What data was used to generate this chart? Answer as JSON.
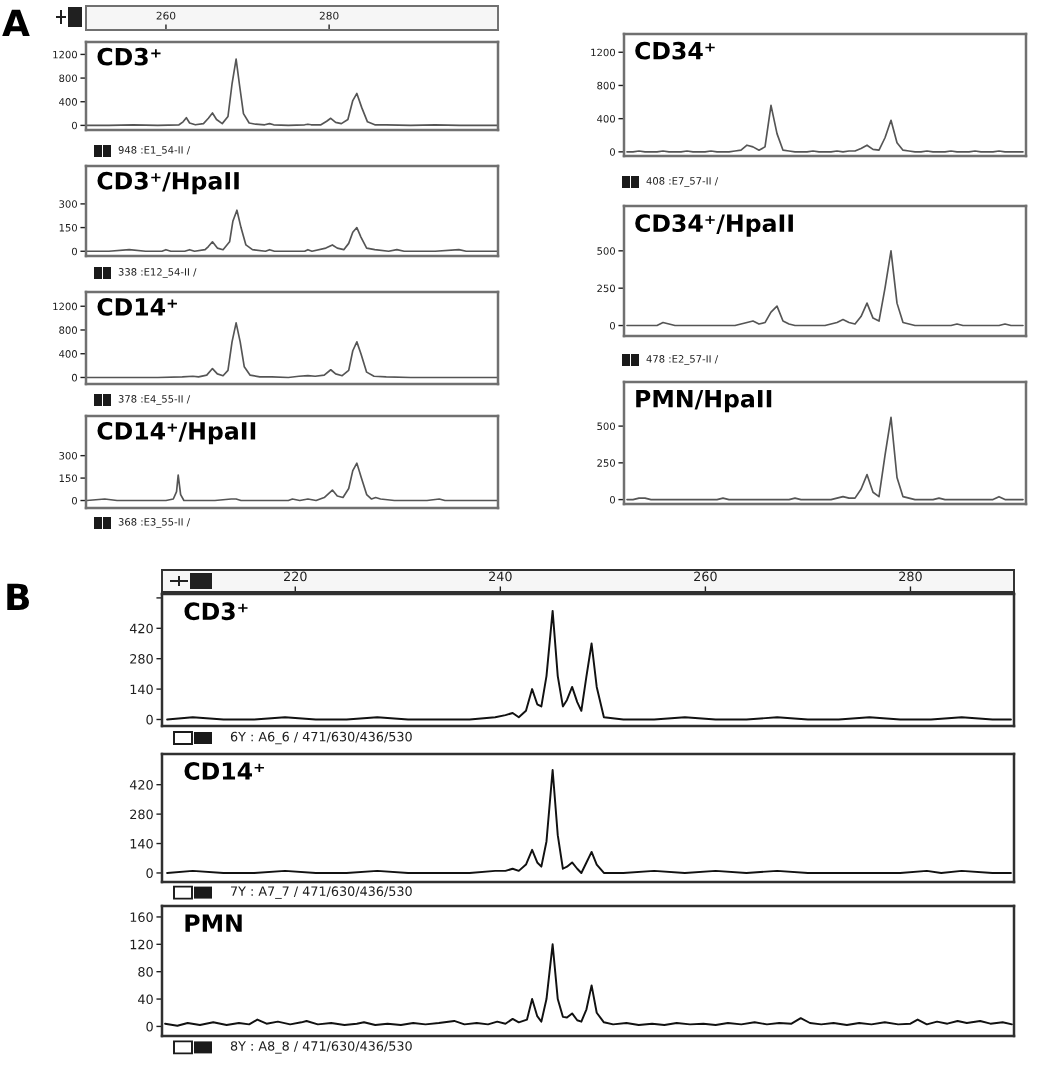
{
  "chart_data": [
    {
      "type": "line",
      "title": "CD3⁺",
      "color": "#555555",
      "xlim": [
        250.2,
        300.7
      ],
      "xticks": [
        260,
        280
      ],
      "ylim": [
        -78,
        1410
      ],
      "yticks": [
        0,
        400,
        800,
        1200
      ],
      "annotations": [
        "A",
        "948 :E1_54-II /"
      ],
      "x": [
        250.3,
        253,
        256,
        259,
        261.6,
        262.1,
        262.5,
        262.9,
        263.6,
        264.6,
        265.2,
        265.7,
        266.2,
        266.9,
        267.6,
        268.1,
        268.6,
        269.0,
        269.5,
        270.2,
        271,
        272.1,
        272.7,
        273.2,
        275,
        277.0,
        277.4,
        277.8,
        279.0,
        279.7,
        280.2,
        280.8,
        281.5,
        282.3,
        282.9,
        283.4,
        284.0,
        284.7,
        285.6,
        287,
        290,
        293,
        296,
        298,
        300.6
      ],
      "values": [
        0,
        0,
        10,
        0,
        10,
        60,
        130,
        40,
        10,
        30,
        120,
        210,
        100,
        30,
        150,
        700,
        1120,
        700,
        200,
        40,
        20,
        10,
        30,
        10,
        0,
        10,
        20,
        10,
        10,
        70,
        120,
        50,
        30,
        100,
        420,
        540,
        300,
        60,
        10,
        10,
        0,
        10,
        0,
        0,
        0
      ]
    },
    {
      "type": "line",
      "title": "CD3⁺/HpaII",
      "color": "#555555",
      "xlim": [
        250.2,
        300.7
      ],
      "ylim": [
        -30,
        540
      ],
      "yticks": [
        0,
        150,
        300
      ],
      "tick_labels": "y",
      "annotations": [
        "338 :E12_54-II /"
      ],
      "x": [
        250.3,
        253,
        255.5,
        257.5,
        259.5,
        260.0,
        260.6,
        262.3,
        262.9,
        263.5,
        264.8,
        265.2,
        265.7,
        266.3,
        267.0,
        267.8,
        268.2,
        268.7,
        269.2,
        269.8,
        270.6,
        272.2,
        272.7,
        273.3,
        275,
        277.0,
        277.4,
        277.9,
        279.6,
        280.4,
        281.0,
        281.8,
        282.4,
        282.9,
        283.4,
        283.9,
        284.6,
        285.6,
        287.3,
        288.3,
        289.2,
        291,
        293,
        295.9,
        296.8,
        299,
        300.6
      ],
      "values": [
        0,
        0,
        10,
        0,
        0,
        10,
        0,
        0,
        10,
        0,
        10,
        30,
        60,
        20,
        10,
        60,
        190,
        260,
        150,
        40,
        10,
        0,
        10,
        0,
        0,
        0,
        10,
        0,
        20,
        40,
        20,
        10,
        50,
        120,
        150,
        90,
        20,
        10,
        0,
        10,
        0,
        0,
        0,
        10,
        0,
        0,
        0
      ]
    },
    {
      "type": "line",
      "title": "CD14⁺",
      "color": "#555555",
      "xlim": [
        250.2,
        300.7
      ],
      "ylim": [
        -110,
        1440
      ],
      "yticks": [
        0,
        400,
        800,
        1200
      ],
      "tick_labels": "y",
      "annotations": [
        "378 :E4_55-II /"
      ],
      "x": [
        250.3,
        253,
        256,
        259,
        262,
        263.3,
        264,
        265.0,
        265.7,
        266.3,
        267.0,
        267.6,
        268.1,
        268.6,
        269.1,
        269.6,
        270.3,
        271.5,
        273,
        275,
        276.3,
        277.4,
        278.3,
        279.4,
        280.2,
        280.8,
        281.6,
        282.4,
        282.9,
        283.4,
        283.9,
        284.6,
        285.5,
        287,
        290,
        293,
        296,
        298,
        300.6
      ],
      "values": [
        0,
        0,
        0,
        0,
        10,
        20,
        10,
        40,
        150,
        60,
        30,
        120,
        600,
        920,
        600,
        180,
        40,
        10,
        10,
        0,
        20,
        30,
        20,
        40,
        130,
        60,
        30,
        120,
        450,
        600,
        400,
        90,
        20,
        10,
        0,
        0,
        0,
        0,
        0
      ]
    },
    {
      "type": "line",
      "title": "CD14⁺/HpaII",
      "color": "#555555",
      "xlim": [
        250.2,
        300.7
      ],
      "ylim": [
        -50,
        565
      ],
      "yticks": [
        0,
        150,
        300
      ],
      "tick_labels": "y",
      "annotations": [
        "368 :E3_55-II /"
      ],
      "x": [
        250.3,
        252.5,
        254,
        256,
        258,
        260,
        260.9,
        261.3,
        261.5,
        261.8,
        262.2,
        264,
        266,
        268.0,
        268.6,
        269.2,
        271,
        273,
        275.0,
        275.5,
        276.4,
        277.4,
        278.4,
        279.4,
        280.0,
        280.4,
        281.0,
        281.7,
        282.4,
        282.9,
        283.4,
        283.9,
        284.6,
        285.2,
        285.7,
        286.3,
        288,
        290,
        292,
        293.5,
        294.2,
        296,
        298,
        300.6
      ],
      "values": [
        0,
        10,
        0,
        0,
        0,
        0,
        10,
        60,
        170,
        40,
        0,
        0,
        0,
        10,
        10,
        0,
        0,
        0,
        0,
        10,
        0,
        10,
        0,
        20,
        50,
        70,
        30,
        20,
        80,
        200,
        250,
        160,
        40,
        10,
        20,
        10,
        0,
        0,
        0,
        10,
        0,
        0,
        0,
        0
      ]
    },
    {
      "type": "line",
      "title": "CD34⁺",
      "color": "#555555",
      "ylim": [
        -50,
        1420
      ],
      "yticks": [
        0,
        400,
        800,
        1200
      ],
      "tick_labels": "y",
      "annotations": [
        "408 :E7_57-II /"
      ],
      "categories": [
        null,
        null,
        null,
        null,
        null,
        null,
        null,
        null,
        null,
        null,
        null,
        null,
        null,
        null,
        null,
        null,
        null,
        null,
        null,
        null,
        null,
        null,
        null,
        null,
        null,
        null,
        null,
        null,
        null,
        null,
        null,
        null,
        null,
        null,
        null,
        null,
        null,
        null,
        null,
        null,
        null,
        null,
        null,
        null,
        null,
        null,
        null,
        null,
        null,
        null,
        null,
        null,
        null,
        null,
        null,
        null,
        null,
        null,
        null,
        null,
        null,
        null,
        null,
        null,
        null,
        null,
        null
      ],
      "values": [
        0,
        0,
        10,
        0,
        0,
        0,
        10,
        0,
        0,
        0,
        10,
        0,
        0,
        0,
        10,
        0,
        0,
        0,
        10,
        20,
        80,
        60,
        20,
        60,
        560,
        220,
        20,
        10,
        0,
        0,
        0,
        10,
        0,
        0,
        0,
        10,
        0,
        10,
        10,
        40,
        80,
        30,
        20,
        170,
        380,
        110,
        20,
        10,
        0,
        0,
        10,
        0,
        0,
        0,
        10,
        0,
        0,
        0,
        10,
        0,
        0,
        0,
        10,
        0,
        0,
        0,
        0
      ]
    },
    {
      "type": "line",
      "title": "CD34⁺/HpaII",
      "color": "#555555",
      "ylim": [
        -70,
        800
      ],
      "yticks": [
        0,
        250,
        500
      ],
      "tick_labels": "y",
      "annotations": [
        "478 :E2_57-II /"
      ],
      "categories": [
        null,
        null,
        null,
        null,
        null,
        null,
        null,
        null,
        null,
        null,
        null,
        null,
        null,
        null,
        null,
        null,
        null,
        null,
        null,
        null,
        null,
        null,
        null,
        null,
        null,
        null,
        null,
        null,
        null,
        null,
        null,
        null,
        null,
        null,
        null,
        null,
        null,
        null,
        null,
        null,
        null,
        null,
        null,
        null,
        null,
        null,
        null,
        null,
        null,
        null,
        null,
        null,
        null,
        null,
        null,
        null,
        null,
        null,
        null,
        null,
        null,
        null,
        null,
        null,
        null,
        null,
        null
      ],
      "values": [
        0,
        0,
        0,
        0,
        0,
        0,
        20,
        10,
        0,
        0,
        0,
        0,
        0,
        0,
        0,
        0,
        0,
        0,
        0,
        10,
        20,
        30,
        10,
        20,
        90,
        130,
        30,
        10,
        0,
        0,
        0,
        0,
        0,
        0,
        10,
        20,
        40,
        20,
        10,
        60,
        150,
        50,
        30,
        250,
        500,
        150,
        20,
        10,
        0,
        0,
        0,
        0,
        0,
        0,
        0,
        10,
        0,
        0,
        0,
        0,
        0,
        0,
        0,
        10,
        0,
        0,
        0
      ]
    },
    {
      "type": "line",
      "title": "PMN/HpaII",
      "color": "#555555",
      "ylim": [
        -30,
        800
      ],
      "yticks": [
        0,
        250,
        500
      ],
      "tick_labels": "y",
      "categories": [
        null,
        null,
        null,
        null,
        null,
        null,
        null,
        null,
        null,
        null,
        null,
        null,
        null,
        null,
        null,
        null,
        null,
        null,
        null,
        null,
        null,
        null,
        null,
        null,
        null,
        null,
        null,
        null,
        null,
        null,
        null,
        null,
        null,
        null,
        null,
        null,
        null,
        null,
        null,
        null,
        null,
        null,
        null,
        null,
        null,
        null,
        null,
        null,
        null,
        null,
        null,
        null,
        null,
        null,
        null,
        null,
        null,
        null,
        null,
        null,
        null,
        null,
        null,
        null,
        null,
        null,
        null
      ],
      "values": [
        0,
        0,
        10,
        10,
        0,
        0,
        0,
        0,
        0,
        0,
        0,
        0,
        0,
        0,
        0,
        0,
        10,
        0,
        0,
        0,
        0,
        0,
        0,
        0,
        0,
        0,
        0,
        0,
        10,
        0,
        0,
        0,
        0,
        0,
        0,
        10,
        20,
        10,
        10,
        70,
        170,
        50,
        20,
        300,
        560,
        150,
        20,
        10,
        0,
        0,
        0,
        0,
        10,
        0,
        0,
        0,
        0,
        0,
        0,
        0,
        0,
        0,
        20,
        0,
        0,
        0,
        0
      ]
    },
    {
      "type": "line",
      "title": "CD3⁺",
      "color": "#111111",
      "xlim": [
        207.0,
        290.1
      ],
      "xticks": [
        220,
        240,
        260,
        280
      ],
      "ylim": [
        -30,
        578
      ],
      "yticks": [
        0,
        140,
        280,
        420,
        {
          "value": 560,
          "label": null
        }
      ],
      "annotations": [
        "B",
        "6Y : A6_6 / 471/630/436/530"
      ],
      "x": [
        207.5,
        210,
        213,
        216,
        219,
        222,
        225,
        228,
        231,
        234,
        237,
        239.5,
        240.5,
        241.2,
        241.8,
        242.5,
        243.1,
        243.6,
        244.0,
        244.5,
        245.1,
        245.6,
        246.1,
        246.5,
        247.0,
        247.5,
        247.9,
        248.4,
        248.9,
        249.4,
        250.1,
        252,
        255,
        258,
        261,
        264,
        267,
        270,
        273,
        276,
        279,
        282,
        285,
        288,
        289.8
      ],
      "values": [
        0,
        10,
        0,
        0,
        10,
        0,
        0,
        10,
        0,
        0,
        0,
        10,
        20,
        30,
        10,
        40,
        140,
        70,
        60,
        200,
        500,
        200,
        60,
        90,
        150,
        80,
        40,
        200,
        350,
        150,
        10,
        0,
        0,
        10,
        0,
        0,
        10,
        0,
        0,
        10,
        0,
        0,
        10,
        0,
        0
      ]
    },
    {
      "type": "line",
      "title": "CD14⁺",
      "color": "#111111",
      "xlim": [
        207.0,
        290.1
      ],
      "ylim": [
        -43,
        566
      ],
      "yticks": [
        0,
        140,
        280,
        420
      ],
      "tick_labels": "y",
      "annotations": [
        "7Y : A7_7 / 471/630/436/530"
      ],
      "x": [
        207.5,
        210,
        213,
        216,
        219,
        222,
        225,
        228,
        231,
        234,
        237,
        239.5,
        240.5,
        241.2,
        241.8,
        242.5,
        243.1,
        243.6,
        244.0,
        244.5,
        245.1,
        245.6,
        246.1,
        246.5,
        247.0,
        247.5,
        247.9,
        248.4,
        248.9,
        249.4,
        250.1,
        252,
        255,
        258,
        261,
        264,
        267,
        270,
        273,
        276,
        279,
        281.6,
        283,
        285,
        288,
        289.8
      ],
      "values": [
        0,
        10,
        0,
        0,
        10,
        0,
        0,
        10,
        0,
        0,
        0,
        10,
        10,
        20,
        10,
        40,
        110,
        50,
        30,
        150,
        490,
        180,
        20,
        30,
        50,
        20,
        0,
        50,
        100,
        40,
        0,
        0,
        10,
        0,
        10,
        0,
        10,
        0,
        0,
        0,
        0,
        10,
        0,
        10,
        0,
        0
      ]
    },
    {
      "type": "line",
      "title": "PMN",
      "color": "#111111",
      "xlim": [
        207.0,
        290.1
      ],
      "ylim": [
        -14,
        176
      ],
      "yticks": [
        0,
        40,
        80,
        120,
        160
      ],
      "tick_labels": "y",
      "annotations": [
        "8Y : A8_8 / 471/630/436/530"
      ],
      "x": [
        207.3,
        208.5,
        209.5,
        210.7,
        212,
        213.3,
        214.5,
        215.5,
        216.3,
        217.2,
        218.3,
        219.5,
        220.6,
        221.1,
        222.2,
        223.5,
        224.8,
        226,
        226.7,
        227.8,
        229,
        230.3,
        231.5,
        232.7,
        234,
        235.5,
        236.5,
        237.7,
        238.8,
        239.7,
        240.5,
        241.2,
        241.8,
        242.6,
        243.1,
        243.6,
        244.0,
        244.5,
        245.1,
        245.6,
        246.1,
        246.5,
        247.0,
        247.5,
        247.9,
        248.4,
        248.9,
        249.4,
        250.1,
        251,
        252.3,
        253.5,
        254.8,
        256,
        257.2,
        258.5,
        259.8,
        261,
        262.2,
        263.5,
        264.8,
        266,
        267.2,
        268.4,
        269.3,
        270.2,
        271.3,
        272.5,
        273.8,
        275,
        276.2,
        277.5,
        278.8,
        280,
        280.7,
        281.6,
        282.6,
        283.6,
        284.6,
        285.5,
        286.8,
        287.8,
        289,
        289.9
      ],
      "values": [
        4,
        1,
        5,
        2,
        6,
        2,
        5,
        3,
        10,
        4,
        7,
        3,
        6,
        8,
        3,
        5,
        2,
        4,
        6,
        2,
        4,
        2,
        5,
        3,
        5,
        8,
        3,
        5,
        3,
        7,
        4,
        11,
        6,
        10,
        40,
        15,
        7,
        40,
        120,
        40,
        14,
        13,
        19,
        9,
        7,
        25,
        60,
        20,
        6,
        3,
        5,
        2,
        4,
        2,
        5,
        3,
        4,
        2,
        5,
        3,
        6,
        3,
        5,
        4,
        12,
        5,
        3,
        5,
        2,
        5,
        3,
        6,
        3,
        4,
        10,
        3,
        7,
        4,
        8,
        5,
        8,
        4,
        6,
        3
      ]
    }
  ]
}
